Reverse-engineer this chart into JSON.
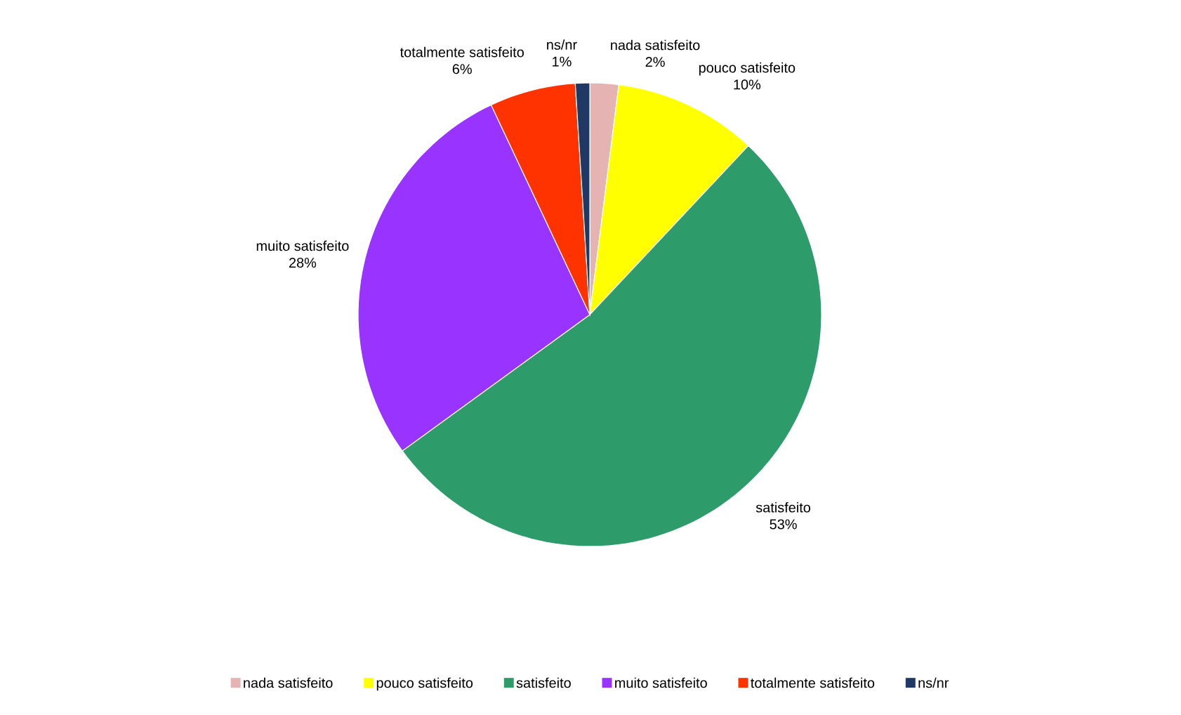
{
  "chart_data": {
    "type": "pie",
    "categories": [
      "nada satisfeito",
      "pouco satisfeito",
      "satisfeito",
      "muito satisfeito",
      "totalmente satisfeito",
      "ns/nr"
    ],
    "values": [
      2,
      10,
      53,
      28,
      6,
      1
    ],
    "value_labels": [
      "2%",
      "10%",
      "53%",
      "28%",
      "6%",
      "1%"
    ],
    "colors": [
      "#e6b3b3",
      "#ffff00",
      "#2e9c6a",
      "#9933ff",
      "#ff3300",
      "#1f3864"
    ],
    "legend": "bottom"
  }
}
